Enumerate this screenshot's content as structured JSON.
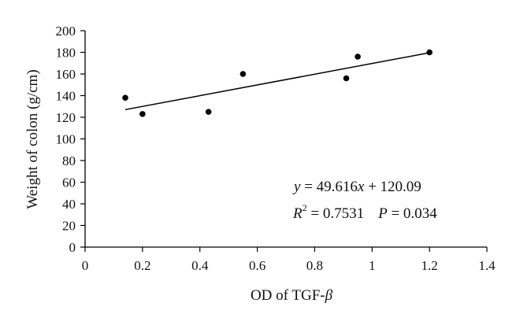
{
  "chart_data": {
    "type": "scatter",
    "title": "",
    "xlabel": "OD of TGF-",
    "xlabel_symbol": "β",
    "ylabel": "Weight of colon (g/cm)",
    "xlim": [
      0,
      1.4
    ],
    "ylim": [
      0,
      200
    ],
    "x_ticks": [
      "0",
      "0.2",
      "0.4",
      "0.6",
      "0.8",
      "1",
      "1.2",
      "1.4"
    ],
    "x_tick_values": [
      0,
      0.2,
      0.4,
      0.6,
      0.8,
      1,
      1.2,
      1.4
    ],
    "y_ticks": [
      "0",
      "20",
      "40",
      "60",
      "80",
      "100",
      "120",
      "140",
      "160",
      "180",
      "200"
    ],
    "y_tick_values": [
      0,
      20,
      40,
      60,
      80,
      100,
      120,
      140,
      160,
      180,
      200
    ],
    "grid": false,
    "points": [
      {
        "x": 0.14,
        "y": 138
      },
      {
        "x": 0.2,
        "y": 123
      },
      {
        "x": 0.43,
        "y": 125
      },
      {
        "x": 0.55,
        "y": 160
      },
      {
        "x": 0.91,
        "y": 156
      },
      {
        "x": 0.95,
        "y": 176
      },
      {
        "x": 1.2,
        "y": 180
      }
    ],
    "trendline": {
      "slope": 49.616,
      "intercept": 120.09,
      "x_range": [
        0.14,
        1.2
      ]
    },
    "annotations": {
      "eq_y": "y",
      "eq_rest": " = 49.616",
      "eq_x": "x",
      "eq_tail": " + 120.09",
      "r_label": "R",
      "r_sup": "2",
      "r_value": " = 0.7531",
      "p_label": "P",
      "p_value": " = 0.034"
    }
  }
}
